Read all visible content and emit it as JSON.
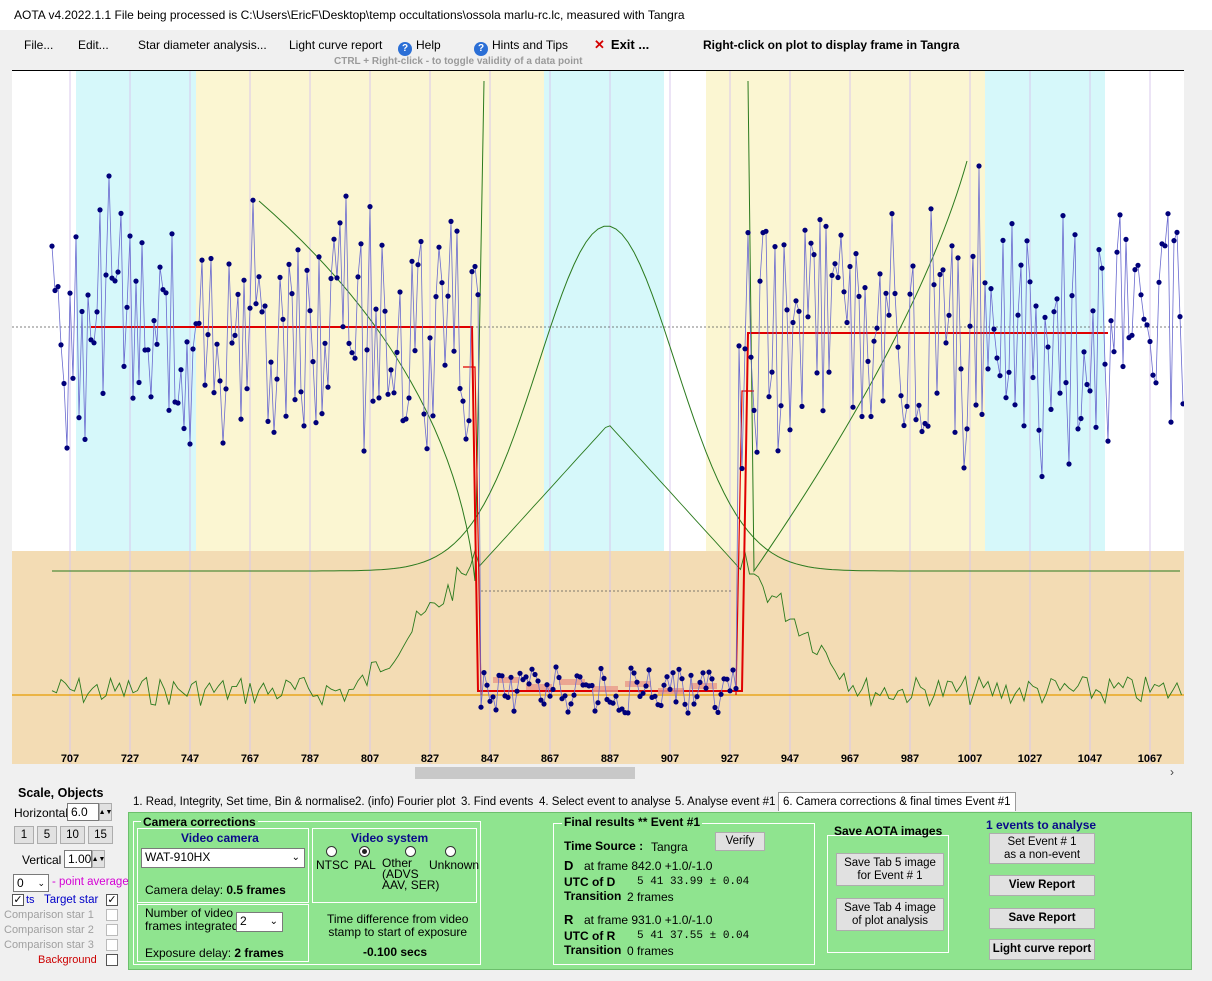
{
  "window": {
    "title": "AOTA v4.2022.1.1    File being processed is C:\\Users\\EricF\\Desktop\\temp occultations\\ossola marlu-rc.lc, measured with Tangra"
  },
  "menu": {
    "file": "File...",
    "edit": "Edit...",
    "star_diameter": "Star diameter analysis...",
    "light_curve_report": "Light curve report",
    "help": "Help",
    "hints": "Hints and Tips",
    "exit": "Exit ...",
    "right_click_hint": "Right-click on plot to display frame in Tangra"
  },
  "plot": {
    "hint": "CTRL + Right-click  -  to toggle validity of a data point",
    "x_tick_labels": [
      "707",
      "727",
      "747",
      "767",
      "787",
      "807",
      "827",
      "847",
      "867",
      "887",
      "907",
      "927",
      "947",
      "967",
      "987",
      "1007",
      "1027",
      "1047",
      "1067"
    ]
  },
  "chart_data": {
    "type": "line",
    "frame_range": [
      701,
      1078
    ],
    "x_tick_labels": [
      707,
      727,
      747,
      767,
      787,
      807,
      827,
      847,
      867,
      887,
      907,
      927,
      947,
      967,
      987,
      1007,
      1027,
      1047,
      1067
    ],
    "event": {
      "d_frame": 842.0,
      "r_frame": 931.0
    },
    "regions": [
      {
        "from": 709,
        "to": 749,
        "color": "#d6f8fa"
      },
      {
        "from": 749,
        "to": 813,
        "color": "#fbf6d2"
      },
      {
        "from": 813,
        "to": 865,
        "color": "#fbf6d2"
      },
      {
        "from": 865,
        "to": 905,
        "color": "#d6f8fa"
      },
      {
        "from": 919,
        "to": 1012,
        "color": "#fbf6d2"
      },
      {
        "from": 1012,
        "to": 1052,
        "color": "#d6f8fa"
      }
    ],
    "colors": {
      "data": "#00007a",
      "model": "#e00000",
      "curve": "#2b7a1e",
      "baseline": "#e69c00",
      "lower_band": "#f3dcb4"
    }
  },
  "left_panel": {
    "scale_title": "Scale,  Objects",
    "horizontal_label": "Horizontal",
    "horizontal_value": "6.0",
    "zoom_buttons": [
      "1",
      "5",
      "10",
      "15"
    ],
    "vertical_label": "Vertical",
    "vertical_value": "1.00",
    "point_average_value": "0",
    "point_average_label": "- point average",
    "objects": [
      {
        "label": "Target star",
        "checked": true
      },
      {
        "label": "Comparison star 1",
        "checked": false
      },
      {
        "label": "Comparison star 2",
        "checked": false
      },
      {
        "label": "Comparison star 3",
        "checked": false
      },
      {
        "label": "Background",
        "checked": false
      }
    ]
  },
  "tabs": [
    "1. Read, Integrity, Set time, Bin & normalise",
    "2. (info)  Fourier plot",
    "3. Find events",
    "4. Select event to analyse",
    "5. Analyse event #1",
    "6. Camera corrections & final times Event #1"
  ],
  "camera": {
    "title": "Camera corrections",
    "video_camera_title": "Video camera",
    "camera_model": "WAT-910HX",
    "camera_delay_label": "Camera delay: ",
    "camera_delay_value": "0.5 frames",
    "video_system_title": "Video system",
    "video_system_options": [
      "NTSC",
      "PAL",
      "Other\n(ADVS\nAAV, SER)",
      "Unknown"
    ],
    "frames_integrated_label": "Number of video\nframes integrated",
    "frames_integrated_value": "2",
    "exposure_delay_label": "Exposure delay: ",
    "exposure_delay_value": "2 frames",
    "time_diff_label": "Time difference from video\nstamp to start of exposure",
    "time_diff_value": "-0.100 secs"
  },
  "results": {
    "title": "Final results  **  Event #1",
    "verify": "Verify",
    "time_source_label": "Time Source :",
    "time_source_value": "Tangra",
    "d_label": "D",
    "d_frame": "at frame 842.0  +1.0/-1.0",
    "utc_d_label": "UTC of D",
    "utc_d_value": "5 41 33.99 ± 0.04",
    "transition_d_label": "Transition",
    "transition_d_value": "2 frames",
    "r_label": "R",
    "r_frame": "at frame 931.0  +1.0/-1.0",
    "utc_r_label": "UTC of R",
    "utc_r_value": "5 41 37.55 ± 0.04",
    "transition_r_label": "Transition",
    "transition_r_value": "0 frames"
  },
  "save": {
    "title": "Save AOTA images",
    "tab5": "Save Tab 5 image\nfor Event # 1",
    "tab4": "Save Tab 4 image\nof plot analysis"
  },
  "right": {
    "events_title": "1  events to analyse",
    "set_non_event": "Set Event # 1\nas a non-event",
    "view_report": "View Report",
    "save_report": "Save Report",
    "light_curve_report": "Light curve report"
  }
}
